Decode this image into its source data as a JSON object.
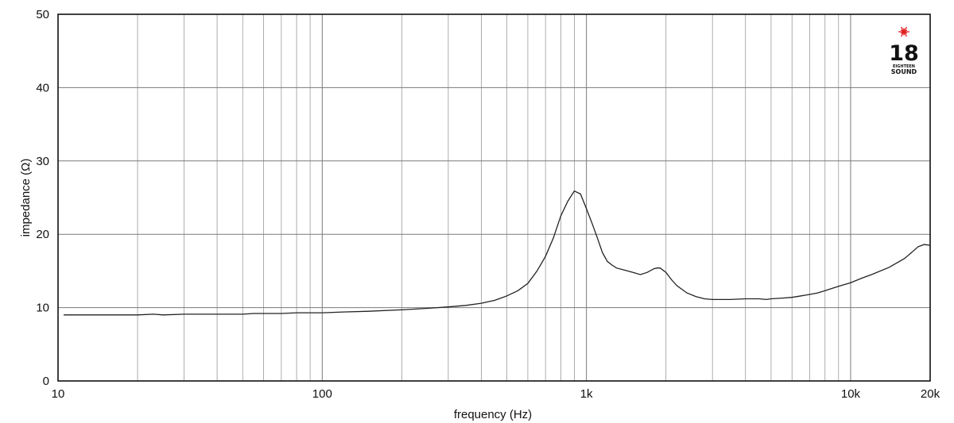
{
  "chart_data": {
    "type": "line",
    "title": "",
    "xlabel": "frequency (Hz)",
    "ylabel": "impedance (Ω)",
    "xscale": "log",
    "xlim": [
      10,
      20000
    ],
    "ylim": [
      0,
      50
    ],
    "grid": true,
    "x_ticks": [
      {
        "value": 10,
        "label": "10"
      },
      {
        "value": 100,
        "label": "100"
      },
      {
        "value": 1000,
        "label": "1k"
      },
      {
        "value": 10000,
        "label": "10k"
      },
      {
        "value": 20000,
        "label": "20k"
      }
    ],
    "y_ticks": [
      {
        "value": 0,
        "label": "0"
      },
      {
        "value": 10,
        "label": "10"
      },
      {
        "value": 20,
        "label": "20"
      },
      {
        "value": 30,
        "label": "30"
      },
      {
        "value": 40,
        "label": "40"
      },
      {
        "value": 50,
        "label": "50"
      }
    ],
    "series": [
      {
        "color": "#222222",
        "x": [
          10.5,
          15,
          20,
          23,
          25,
          30,
          40,
          50,
          55,
          70,
          80,
          100,
          120,
          150,
          200,
          250,
          300,
          350,
          400,
          450,
          500,
          550,
          600,
          650,
          700,
          750,
          800,
          850,
          900,
          950,
          1000,
          1050,
          1100,
          1150,
          1200,
          1250,
          1300,
          1400,
          1500,
          1600,
          1700,
          1800,
          1850,
          1900,
          2000,
          2100,
          2200,
          2400,
          2600,
          2800,
          3000,
          3500,
          4000,
          4500,
          4800,
          5000,
          5500,
          6000,
          6500,
          7000,
          7500,
          8000,
          9000,
          10000,
          11000,
          12000,
          14000,
          16000,
          17000,
          18000,
          19000,
          20000
        ],
        "y": [
          9.0,
          9.0,
          9.0,
          9.1,
          9.0,
          9.1,
          9.1,
          9.1,
          9.2,
          9.2,
          9.3,
          9.3,
          9.4,
          9.5,
          9.7,
          9.9,
          10.1,
          10.3,
          10.6,
          11.0,
          11.6,
          12.3,
          13.3,
          15.0,
          17.0,
          19.5,
          22.5,
          24.5,
          25.9,
          25.5,
          23.5,
          21.5,
          19.5,
          17.5,
          16.3,
          15.8,
          15.4,
          15.1,
          14.8,
          14.5,
          14.8,
          15.3,
          15.4,
          15.4,
          14.8,
          13.8,
          13.0,
          12.0,
          11.5,
          11.2,
          11.1,
          11.1,
          11.2,
          11.2,
          11.1,
          11.2,
          11.3,
          11.4,
          11.6,
          11.8,
          12.0,
          12.3,
          12.9,
          13.4,
          14.0,
          14.5,
          15.5,
          16.7,
          17.5,
          18.3,
          18.6,
          18.5
        ]
      }
    ]
  },
  "logo": {
    "number": "18",
    "line1": "EIGHTEEN",
    "line2": "SOUND",
    "star_color": "#e02020"
  }
}
